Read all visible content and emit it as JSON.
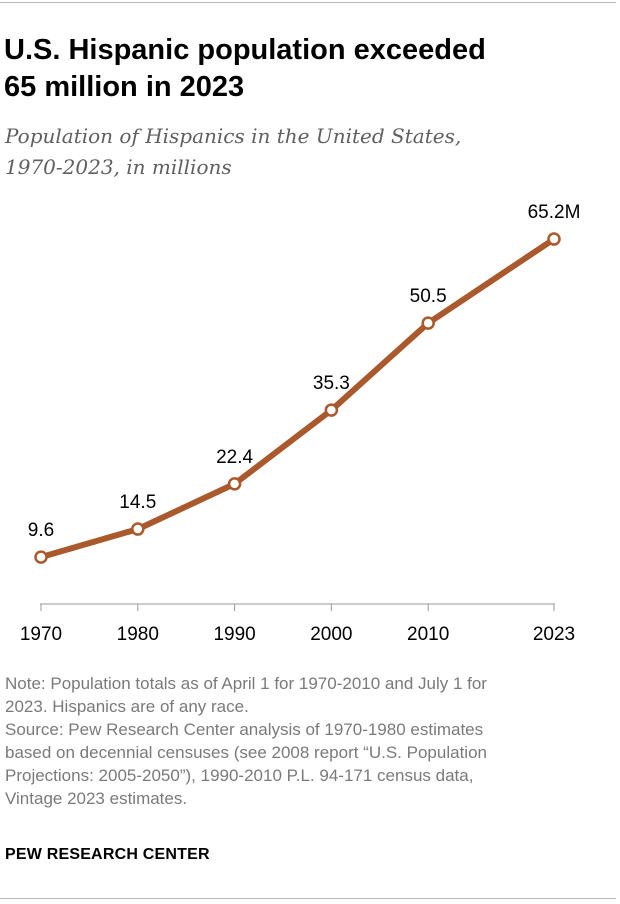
{
  "header": {
    "title_line1": "U.S. Hispanic population exceeded",
    "title_line2": "65 million in 2023",
    "subtitle_line1": "Population of Hispanics in the United States,",
    "subtitle_line2": "1970-2023, in millions"
  },
  "chart_data": {
    "type": "line",
    "title": "U.S. Hispanic population exceeded 65 million in 2023",
    "subtitle": "Population of Hispanics in the United States, 1970-2023, in millions",
    "x": [
      1970,
      1980,
      1990,
      2000,
      2010,
      2023
    ],
    "tick_labels": [
      "1970",
      "1980",
      "1990",
      "2000",
      "2010",
      "2023"
    ],
    "series": [
      {
        "values": [
          9.6,
          14.5,
          22.4,
          35.3,
          50.5,
          65.2
        ],
        "labels": [
          "9.6",
          "14.5",
          "22.4",
          "35.3",
          "50.5",
          "65.2M"
        ],
        "color": "#a9592b"
      }
    ],
    "xlim": [
      1970,
      2023
    ],
    "ylim": [
      0,
      70
    ],
    "grid": false,
    "legend": "none"
  },
  "footer": {
    "note_line1": "Note: Population totals as of April 1 for 1970-2010 and July 1 for",
    "note_line2": "2023. Hispanics are of any race.",
    "source_line1": "Source: Pew Research Center analysis of 1970-1980 estimates",
    "source_line2": "based on decennial censuses (see 2008 report “U.S. Population",
    "source_line3": "Projections: 2005-2050”), 1990-2010 P.L. 94-171 census data,",
    "source_line4": "Vintage 2023 estimates.",
    "org": "PEW RESEARCH CENTER"
  },
  "colors": {
    "line": "#a9592b",
    "axis": "#999999",
    "note_text": "#7a7a7a",
    "subtitle_text": "#5f5f5f"
  }
}
